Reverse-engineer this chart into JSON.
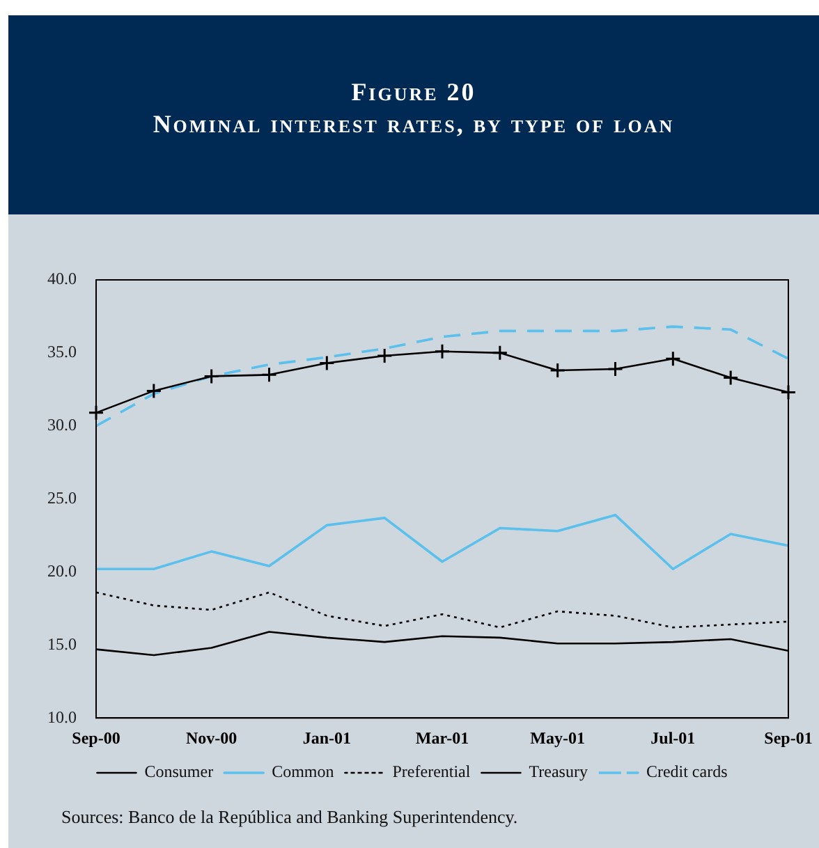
{
  "chart_data": {
    "type": "line",
    "title": "Figure 20",
    "subtitle": "Nominal interest rates, by type of loan",
    "categories": [
      "Sep-00",
      null,
      "Nov-00",
      null,
      "Jan-01",
      null,
      "Mar-01",
      null,
      "May-01",
      null,
      "Jul-01",
      null,
      "Sep-01"
    ],
    "series": [
      {
        "name": "Consumer",
        "color": "#000000",
        "marker": "cross",
        "line_style": "solid",
        "values": [
          30.9,
          32.4,
          33.4,
          33.5,
          34.3,
          34.8,
          35.1,
          35.0,
          33.8,
          33.9,
          34.6,
          33.3,
          32.3
        ]
      },
      {
        "name": "Common",
        "color": "#5bc0eb",
        "marker": "none",
        "line_style": "solid",
        "values": [
          20.2,
          20.2,
          21.4,
          20.4,
          23.2,
          23.7,
          20.7,
          23.0,
          22.8,
          23.9,
          20.2,
          22.6,
          21.8
        ]
      },
      {
        "name": "Preferential",
        "color": "#000000",
        "marker": "none",
        "line_style": "dotted",
        "values": [
          18.6,
          17.7,
          17.4,
          18.6,
          17.0,
          16.3,
          17.1,
          16.2,
          17.3,
          17.0,
          16.2,
          16.4,
          16.6
        ]
      },
      {
        "name": "Treasury",
        "color": "#000000",
        "marker": "none",
        "line_style": "solid",
        "values": [
          14.7,
          14.3,
          14.8,
          15.9,
          15.5,
          15.2,
          15.6,
          15.5,
          15.1,
          15.1,
          15.2,
          15.4,
          14.6
        ]
      },
      {
        "name": "Credit cards",
        "color": "#5bc0eb",
        "marker": "none",
        "line_style": "dashed",
        "values": [
          30.0,
          32.2,
          33.4,
          34.2,
          34.7,
          35.3,
          36.1,
          36.5,
          36.5,
          36.5,
          36.8,
          36.6,
          34.6
        ]
      }
    ],
    "ylim": [
      10,
      40
    ],
    "yticks": [
      {
        "value": 10,
        "label": "10.0"
      },
      {
        "value": 15,
        "label": "15.0"
      },
      {
        "value": 20,
        "label": "20.0"
      },
      {
        "value": 25,
        "label": "25.0"
      },
      {
        "value": 30,
        "label": "30.0"
      },
      {
        "value": 35,
        "label": "35.0"
      },
      {
        "value": 40,
        "label": "40.0"
      }
    ],
    "grid": false,
    "legend": "bottom",
    "annotations": [
      "Sources: Banco de la República and Banking Superintendency."
    ]
  }
}
